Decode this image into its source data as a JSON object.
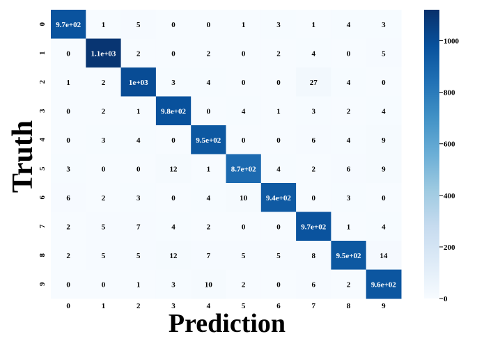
{
  "chart_data": {
    "type": "heatmap",
    "title": "",
    "xlabel": "Prediction",
    "ylabel": "Truth",
    "x_categories": [
      "0",
      "1",
      "2",
      "3",
      "4",
      "5",
      "6",
      "7",
      "8",
      "9"
    ],
    "y_categories": [
      "0",
      "1",
      "2",
      "3",
      "4",
      "5",
      "6",
      "7",
      "8",
      "9"
    ],
    "values": [
      [
        970,
        1,
        5,
        0,
        0,
        1,
        3,
        1,
        4,
        3
      ],
      [
        0,
        1100,
        2,
        0,
        2,
        0,
        2,
        4,
        0,
        5
      ],
      [
        1,
        2,
        1000,
        3,
        4,
        0,
        0,
        27,
        4,
        0
      ],
      [
        0,
        2,
        1,
        980,
        0,
        4,
        1,
        3,
        2,
        4
      ],
      [
        0,
        3,
        4,
        0,
        950,
        0,
        0,
        6,
        4,
        9
      ],
      [
        3,
        0,
        0,
        12,
        1,
        870,
        4,
        2,
        6,
        9
      ],
      [
        6,
        2,
        3,
        0,
        4,
        10,
        940,
        0,
        3,
        0
      ],
      [
        2,
        5,
        7,
        4,
        2,
        0,
        0,
        970,
        1,
        4
      ],
      [
        2,
        5,
        5,
        12,
        7,
        5,
        5,
        8,
        950,
        14
      ],
      [
        0,
        0,
        1,
        3,
        10,
        2,
        0,
        6,
        2,
        960
      ]
    ],
    "cell_labels": [
      [
        "9.7e+02",
        "1",
        "5",
        "0",
        "0",
        "1",
        "3",
        "1",
        "4",
        "3"
      ],
      [
        "0",
        "1.1e+03",
        "2",
        "0",
        "2",
        "0",
        "2",
        "4",
        "0",
        "5"
      ],
      [
        "1",
        "2",
        "1e+03",
        "3",
        "4",
        "0",
        "0",
        "27",
        "4",
        "0"
      ],
      [
        "0",
        "2",
        "1",
        "9.8e+02",
        "0",
        "4",
        "1",
        "3",
        "2",
        "4"
      ],
      [
        "0",
        "3",
        "4",
        "0",
        "9.5e+02",
        "0",
        "0",
        "6",
        "4",
        "9"
      ],
      [
        "3",
        "0",
        "0",
        "12",
        "1",
        "8.7e+02",
        "4",
        "2",
        "6",
        "9"
      ],
      [
        "6",
        "2",
        "3",
        "0",
        "4",
        "10",
        "9.4e+02",
        "0",
        "3",
        "0"
      ],
      [
        "2",
        "5",
        "7",
        "4",
        "2",
        "0",
        "0",
        "9.7e+02",
        "1",
        "4"
      ],
      [
        "2",
        "5",
        "5",
        "12",
        "7",
        "5",
        "5",
        "8",
        "9.5e+02",
        "14"
      ],
      [
        "0",
        "0",
        "1",
        "3",
        "10",
        "2",
        "0",
        "6",
        "2",
        "9.6e+02"
      ]
    ],
    "colorbar": {
      "min": 0,
      "max": 1120,
      "ticks": [
        0,
        200,
        400,
        600,
        800,
        1000
      ],
      "colormap": "Blues",
      "low_color": "#f7fbff",
      "high_color": "#08306b"
    },
    "grid": false,
    "legend": "colorbar-right"
  }
}
